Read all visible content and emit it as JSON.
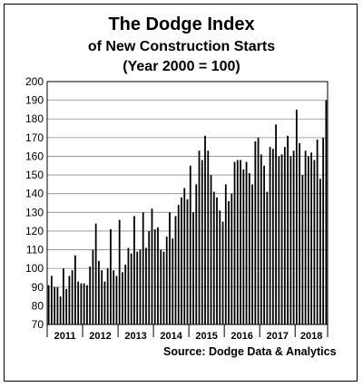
{
  "chart_data": {
    "type": "bar",
    "title": "The Dodge Index",
    "subtitle": "of New Construction Starts",
    "subtitle2": "(Year 2000 = 100)",
    "source": "Source:  Dodge Data & Analytics",
    "ylim": [
      70,
      200
    ],
    "yticks": [
      "70",
      "80",
      "90",
      "100",
      "110",
      "120",
      "130",
      "140",
      "150",
      "160",
      "170",
      "180",
      "190",
      "200"
    ],
    "year_labels": [
      "2011",
      "2012",
      "2013",
      "2014",
      "2015",
      "2016",
      "2017",
      "2018"
    ],
    "grid": true,
    "bar_color": "#000000",
    "values": [
      91,
      96,
      90,
      90,
      85,
      100,
      89,
      96,
      99,
      107,
      93,
      92,
      92,
      91,
      101,
      110,
      124,
      104,
      99,
      93,
      100,
      121,
      99,
      96,
      126,
      98,
      102,
      111,
      108,
      128,
      109,
      110,
      130,
      111,
      120,
      132,
      121,
      122,
      110,
      109,
      117,
      130,
      116,
      128,
      134,
      138,
      143,
      137,
      155,
      130,
      145,
      163,
      158,
      171,
      163,
      150,
      141,
      138,
      131,
      125,
      145,
      136,
      140,
      157,
      158,
      158,
      153,
      157,
      151,
      145,
      168,
      170,
      161,
      155,
      141,
      165,
      164,
      177,
      160,
      161,
      165,
      171,
      160,
      163,
      185,
      167,
      150,
      163,
      160,
      162,
      158,
      169,
      148,
      170,
      190
    ]
  }
}
